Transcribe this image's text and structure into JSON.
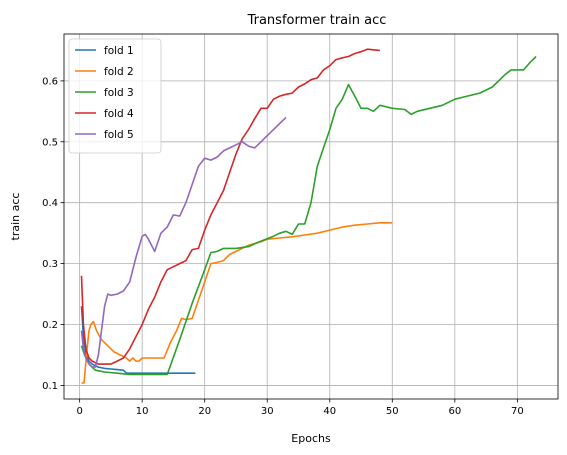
{
  "chart_data": {
    "type": "line",
    "title": "Transformer train acc",
    "xlabel": "Epochs",
    "ylabel": "train acc",
    "xlim": [
      -2.5,
      76.5
    ],
    "ylim": [
      0.0777,
      0.677
    ],
    "xticks": [
      0,
      10,
      20,
      30,
      40,
      50,
      60,
      70
    ],
    "yticks": [
      0.1,
      0.2,
      0.3,
      0.4,
      0.5,
      0.6
    ],
    "ytick_labels": [
      "0.1",
      "0.2",
      "0.3",
      "0.4",
      "0.5",
      "0.6"
    ],
    "grid": true,
    "legend_position": "upper-left",
    "series": [
      {
        "name": "fold 1",
        "color": "#1f77b4",
        "points": [
          [
            0.3,
            0.23
          ],
          [
            0.6,
            0.18
          ],
          [
            1,
            0.15
          ],
          [
            1.5,
            0.14
          ],
          [
            2,
            0.135
          ],
          [
            3,
            0.13
          ],
          [
            4,
            0.128
          ],
          [
            5,
            0.127
          ],
          [
            6,
            0.126
          ],
          [
            7,
            0.125
          ],
          [
            7.5,
            0.12
          ],
          [
            10,
            0.12
          ],
          [
            14,
            0.12
          ],
          [
            18.5,
            0.12
          ]
        ]
      },
      {
        "name": "fold 2",
        "color": "#ff7f0e",
        "points": [
          [
            0.3,
            0.104
          ],
          [
            0.7,
            0.104
          ],
          [
            1.2,
            0.16
          ],
          [
            1.5,
            0.19
          ],
          [
            1.8,
            0.2
          ],
          [
            2.2,
            0.205
          ],
          [
            2.7,
            0.19
          ],
          [
            3.5,
            0.175
          ],
          [
            4.5,
            0.165
          ],
          [
            5.5,
            0.155
          ],
          [
            6.5,
            0.15
          ],
          [
            7.5,
            0.145
          ],
          [
            8,
            0.14
          ],
          [
            8.5,
            0.145
          ],
          [
            9,
            0.14
          ],
          [
            9.5,
            0.14
          ],
          [
            10,
            0.145
          ],
          [
            12,
            0.145
          ],
          [
            13.5,
            0.145
          ],
          [
            14.5,
            0.17
          ],
          [
            15.5,
            0.19
          ],
          [
            16.3,
            0.21
          ],
          [
            17,
            0.208
          ],
          [
            18,
            0.21
          ],
          [
            19,
            0.24
          ],
          [
            20,
            0.27
          ],
          [
            21,
            0.3
          ],
          [
            22,
            0.302
          ],
          [
            23,
            0.305
          ],
          [
            24,
            0.315
          ],
          [
            25,
            0.32
          ],
          [
            26,
            0.325
          ],
          [
            27,
            0.33
          ],
          [
            28,
            0.333
          ],
          [
            29,
            0.336
          ],
          [
            30,
            0.34
          ],
          [
            32,
            0.342
          ],
          [
            34,
            0.344
          ],
          [
            36,
            0.347
          ],
          [
            38,
            0.35
          ],
          [
            40,
            0.355
          ],
          [
            42,
            0.36
          ],
          [
            44,
            0.363
          ],
          [
            46,
            0.365
          ],
          [
            48,
            0.367
          ],
          [
            50,
            0.367
          ]
        ]
      },
      {
        "name": "fold 3",
        "color": "#2ca02c",
        "points": [
          [
            0.3,
            0.165
          ],
          [
            0.8,
            0.15
          ],
          [
            1.5,
            0.135
          ],
          [
            2.5,
            0.125
          ],
          [
            4,
            0.122
          ],
          [
            6,
            0.12
          ],
          [
            8,
            0.118
          ],
          [
            10,
            0.118
          ],
          [
            12,
            0.118
          ],
          [
            14,
            0.118
          ],
          [
            16,
            0.175
          ],
          [
            18,
            0.235
          ],
          [
            20,
            0.29
          ],
          [
            21,
            0.318
          ],
          [
            22,
            0.32
          ],
          [
            23,
            0.325
          ],
          [
            25,
            0.325
          ],
          [
            27,
            0.328
          ],
          [
            29,
            0.337
          ],
          [
            31,
            0.345
          ],
          [
            32,
            0.35
          ],
          [
            33,
            0.353
          ],
          [
            34,
            0.348
          ],
          [
            35,
            0.365
          ],
          [
            36,
            0.365
          ],
          [
            37,
            0.4
          ],
          [
            38,
            0.46
          ],
          [
            39,
            0.49
          ],
          [
            40,
            0.52
          ],
          [
            41,
            0.555
          ],
          [
            42,
            0.57
          ],
          [
            43,
            0.594
          ],
          [
            44,
            0.575
          ],
          [
            45,
            0.555
          ],
          [
            46,
            0.555
          ],
          [
            47,
            0.55
          ],
          [
            48,
            0.56
          ],
          [
            50,
            0.555
          ],
          [
            52,
            0.553
          ],
          [
            53,
            0.545
          ],
          [
            54,
            0.55
          ],
          [
            56,
            0.555
          ],
          [
            58,
            0.56
          ],
          [
            60,
            0.57
          ],
          [
            62,
            0.575
          ],
          [
            64,
            0.58
          ],
          [
            66,
            0.59
          ],
          [
            67,
            0.6
          ],
          [
            68,
            0.61
          ],
          [
            69,
            0.618
          ],
          [
            71,
            0.618
          ],
          [
            72,
            0.63
          ],
          [
            73,
            0.64
          ]
        ]
      },
      {
        "name": "fold 4",
        "color": "#d62728",
        "points": [
          [
            0.3,
            0.28
          ],
          [
            0.6,
            0.2
          ],
          [
            1,
            0.16
          ],
          [
            1.5,
            0.145
          ],
          [
            2,
            0.14
          ],
          [
            3,
            0.135
          ],
          [
            4,
            0.135
          ],
          [
            5,
            0.135
          ],
          [
            6,
            0.14
          ],
          [
            7,
            0.145
          ],
          [
            8,
            0.16
          ],
          [
            9,
            0.18
          ],
          [
            10,
            0.2
          ],
          [
            11,
            0.225
          ],
          [
            12,
            0.245
          ],
          [
            13,
            0.27
          ],
          [
            14,
            0.29
          ],
          [
            15,
            0.295
          ],
          [
            16,
            0.3
          ],
          [
            17,
            0.305
          ],
          [
            18,
            0.323
          ],
          [
            19,
            0.325
          ],
          [
            20,
            0.355
          ],
          [
            21,
            0.38
          ],
          [
            22,
            0.4
          ],
          [
            23,
            0.42
          ],
          [
            24,
            0.45
          ],
          [
            25,
            0.48
          ],
          [
            26,
            0.505
          ],
          [
            27,
            0.52
          ],
          [
            28,
            0.538
          ],
          [
            29,
            0.555
          ],
          [
            30,
            0.555
          ],
          [
            31,
            0.57
          ],
          [
            32,
            0.575
          ],
          [
            33,
            0.578
          ],
          [
            34,
            0.58
          ],
          [
            35,
            0.59
          ],
          [
            36,
            0.595
          ],
          [
            37,
            0.602
          ],
          [
            38,
            0.605
          ],
          [
            39,
            0.618
          ],
          [
            40,
            0.625
          ],
          [
            41,
            0.635
          ],
          [
            42,
            0.638
          ],
          [
            43,
            0.64
          ],
          [
            44,
            0.645
          ],
          [
            45,
            0.648
          ],
          [
            46,
            0.652
          ],
          [
            47,
            0.651
          ],
          [
            48,
            0.65
          ]
        ]
      },
      {
        "name": "fold 5",
        "color": "#9467bd",
        "points": [
          [
            0.3,
            0.19
          ],
          [
            0.6,
            0.16
          ],
          [
            1,
            0.145
          ],
          [
            1.5,
            0.135
          ],
          [
            2,
            0.13
          ],
          [
            2.5,
            0.13
          ],
          [
            3,
            0.15
          ],
          [
            3.5,
            0.19
          ],
          [
            4,
            0.23
          ],
          [
            4.5,
            0.25
          ],
          [
            5,
            0.248
          ],
          [
            6,
            0.25
          ],
          [
            7,
            0.255
          ],
          [
            8,
            0.27
          ],
          [
            9,
            0.31
          ],
          [
            10,
            0.345
          ],
          [
            10.5,
            0.348
          ],
          [
            11,
            0.34
          ],
          [
            12,
            0.32
          ],
          [
            13,
            0.35
          ],
          [
            14,
            0.36
          ],
          [
            15,
            0.38
          ],
          [
            16,
            0.378
          ],
          [
            17,
            0.4
          ],
          [
            18,
            0.43
          ],
          [
            19,
            0.46
          ],
          [
            20,
            0.473
          ],
          [
            21,
            0.47
          ],
          [
            22,
            0.475
          ],
          [
            23,
            0.485
          ],
          [
            24,
            0.49
          ],
          [
            25,
            0.495
          ],
          [
            26,
            0.5
          ],
          [
            27,
            0.493
          ],
          [
            28,
            0.49
          ],
          [
            29,
            0.5
          ],
          [
            30,
            0.51
          ],
          [
            31,
            0.52
          ],
          [
            32,
            0.53
          ],
          [
            33,
            0.54
          ]
        ]
      }
    ]
  }
}
